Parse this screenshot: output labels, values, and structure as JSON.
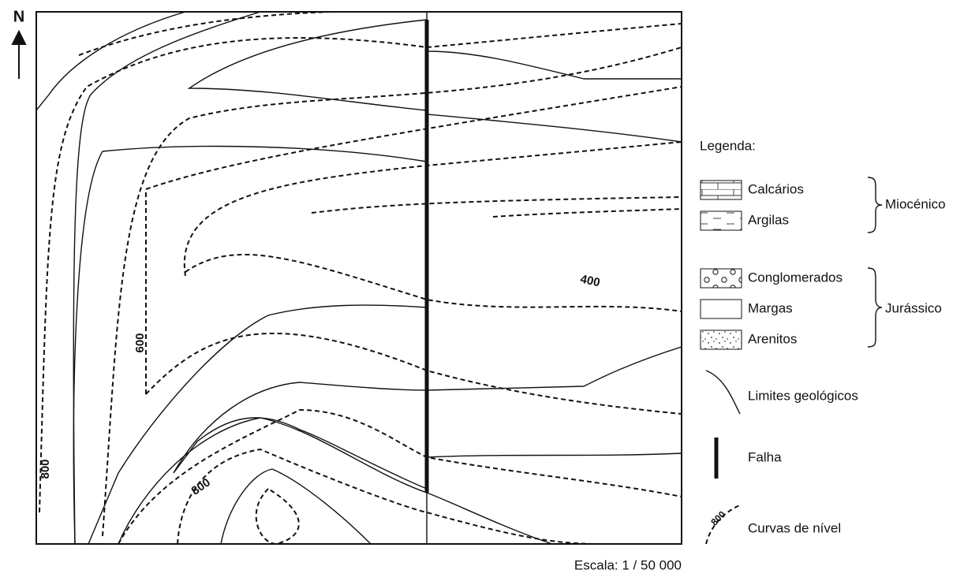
{
  "north": "N",
  "map": {
    "contour_labels": [
      600,
      800,
      800,
      400
    ]
  },
  "legend": {
    "title": "Legenda:",
    "items": [
      "Calcários",
      "Argilas",
      "Conglomerados",
      "Margas",
      "Arenitos"
    ],
    "groups": [
      "Miocénico",
      "Jurássico"
    ],
    "symbols": [
      "Limites geológicos",
      "Falha",
      "Curvas de nível"
    ],
    "symbol_contour_label": 800
  },
  "scale": "Escala: 1 / 50 000"
}
